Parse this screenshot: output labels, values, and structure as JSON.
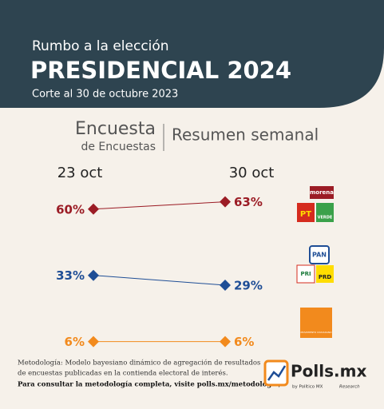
{
  "header": {
    "kicker": "Rumbo a la elección",
    "title": "PRESIDENCIAL 2024",
    "subtitle": "Corte al 30 de octubre 2023"
  },
  "brand": {
    "line1": "Encuesta",
    "line2": "de Encuestas",
    "section": "Resumen semanal"
  },
  "chart_data": {
    "type": "slope",
    "categories": [
      "23 oct",
      "30 oct"
    ],
    "series": [
      {
        "color": "#9b1c25",
        "values": [
          60,
          63
        ],
        "value_labels": [
          "60%",
          "63%"
        ]
      },
      {
        "color": "#1f4e96",
        "values": [
          33,
          29
        ],
        "value_labels": [
          "33%",
          "29%"
        ]
      },
      {
        "color": "#f28a1d",
        "values": [
          6,
          6
        ],
        "value_labels": [
          "6%",
          "6%"
        ]
      }
    ]
  },
  "logos": [
    [
      "morena",
      "PT",
      "VERDE"
    ],
    [
      "PAN",
      "PRI",
      "PRD"
    ],
    [
      "MOVIMIENTO CIUDADANO"
    ]
  ],
  "footer": {
    "note1": "Metodología: Modelo bayesiano dinámico de agregación de resultados",
    "note2": "de encuestas publicadas en la contienda electoral de interés.",
    "note3": "Para consultar la metodología completa, visite polls.mx/metodologia/.",
    "logo": "Polls.mx",
    "by": "by Político MX",
    "partner": "Research"
  }
}
